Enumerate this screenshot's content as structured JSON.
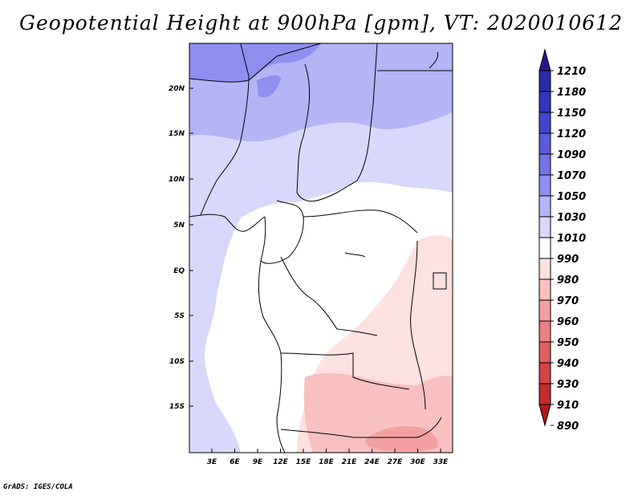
{
  "title": "Geopotential Height at 900hPa [gpm], VT: 2020010612",
  "credit": "GrADS: IGES/COLA",
  "map": {
    "lat_labels": [
      "20N",
      "15N",
      "10N",
      "5N",
      "EQ",
      "5S",
      "10S",
      "15S"
    ],
    "lon_labels": [
      "3E",
      "6E",
      "9E",
      "12E",
      "15E",
      "18E",
      "21E",
      "24E",
      "27E",
      "30E",
      "33E"
    ],
    "colorbar_levels": [
      "1210",
      "1180",
      "1150",
      "1120",
      "1090",
      "1070",
      "1050",
      "1030",
      "1010",
      "990",
      "980",
      "970",
      "960",
      "950",
      "940",
      "930",
      "910",
      "890"
    ],
    "colorbar_colors": [
      "#24188c",
      "#2b2aa5",
      "#3434be",
      "#4444cf",
      "#5b5bdb",
      "#7373e6",
      "#8f8ff0",
      "#b4b4f7",
      "#d8d8fb",
      "#ffffff",
      "#fde0e0",
      "#f9c0c0",
      "#f3a0a0",
      "#eb8080",
      "#e06060",
      "#d44444",
      "#c52c2c",
      "#b01c1c"
    ],
    "colors": {
      "lavender_light": "#d8d8fb",
      "lavender_mid": "#b4b4f7",
      "lavender_dark": "#8f8ff0",
      "white": "#ffffff",
      "pink_light": "#fde0e0",
      "pink_mid": "#f9c0c0",
      "pink_dark": "#f3a0a0"
    }
  }
}
